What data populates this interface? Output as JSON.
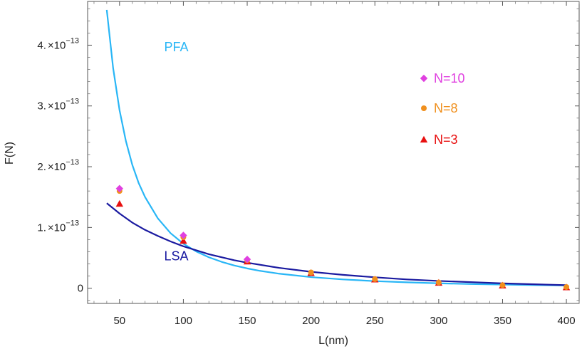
{
  "chart_data": {
    "type": "scatter",
    "xlabel": "L(nm)",
    "ylabel": "F(N)",
    "xlim": [
      25,
      410
    ],
    "ylim": [
      -2.5e-14,
      4.72e-13
    ],
    "x_ticks": [
      {
        "value": 50,
        "label": "50"
      },
      {
        "value": 100,
        "label": "100"
      },
      {
        "value": 150,
        "label": "150"
      },
      {
        "value": 200,
        "label": "200"
      },
      {
        "value": 250,
        "label": "250"
      },
      {
        "value": 300,
        "label": "300"
      },
      {
        "value": 350,
        "label": "350"
      },
      {
        "value": 400,
        "label": "400"
      }
    ],
    "y_ticks": [
      {
        "value": 0,
        "label": "0"
      },
      {
        "value": 1e-13,
        "mantissa": "1.",
        "times": "×",
        "base": "10",
        "exp": "−13"
      },
      {
        "value": 2e-13,
        "mantissa": "2.",
        "times": "×",
        "base": "10",
        "exp": "−13"
      },
      {
        "value": 3e-13,
        "mantissa": "3.",
        "times": "×",
        "base": "10",
        "exp": "−13"
      },
      {
        "value": 4e-13,
        "mantissa": "4.",
        "times": "×",
        "base": "10",
        "exp": "−13"
      }
    ],
    "grid": false,
    "curves": [
      {
        "name": "PFA",
        "color": "#29b6f6",
        "x": [
          40,
          45,
          50,
          55,
          60,
          65,
          70,
          80,
          90,
          100,
          110,
          120,
          130,
          140,
          150,
          160,
          175,
          200,
          225,
          250,
          275,
          300,
          325,
          350,
          375,
          400
        ],
        "y": [
          4.58e-13,
          3.62e-13,
          2.93e-13,
          2.42e-13,
          2.03e-13,
          1.73e-13,
          1.5e-13,
          1.15e-13,
          9.05e-14,
          7.33e-14,
          6.06e-14,
          5.09e-14,
          4.34e-14,
          3.74e-14,
          3.26e-14,
          2.86e-14,
          2.39e-14,
          1.83e-14,
          1.45e-14,
          1.17e-14,
          9.7e-15,
          8.1e-15,
          6.9e-15,
          6e-15,
          5.2e-15,
          4.6e-15
        ]
      },
      {
        "name": "LSA",
        "color": "#1a1aa0",
        "x": [
          40,
          50,
          60,
          70,
          80,
          90,
          100,
          120,
          140,
          150,
          175,
          200,
          225,
          250,
          275,
          300,
          325,
          350,
          375,
          400
        ],
        "y": [
          1.4e-13,
          1.23e-13,
          1.08e-13,
          9.6e-14,
          8.6e-14,
          7.7e-14,
          6.9e-14,
          5.6e-14,
          4.6e-14,
          4.2e-14,
          3.35e-14,
          2.7e-14,
          2.2e-14,
          1.8e-14,
          1.45e-14,
          1.2e-14,
          1e-14,
          8e-15,
          6.5e-15,
          5e-15
        ]
      }
    ],
    "curve_labels": [
      {
        "text": "PFA",
        "color": "#29b6f6",
        "x": 85,
        "y": 3.9e-13
      },
      {
        "text": "LSA",
        "color": "#1a1aa0",
        "x": 85,
        "y": 4.6e-14
      }
    ],
    "series": [
      {
        "name": "N=10",
        "marker": "diamond",
        "color": "#e040e0",
        "x": [
          50,
          100,
          150
        ],
        "y": [
          1.64e-13,
          8.7e-14,
          4.75e-14
        ]
      },
      {
        "name": "N=8",
        "marker": "circle",
        "color": "#f0901e",
        "x": [
          50,
          100,
          150,
          200,
          250,
          300,
          350,
          400
        ],
        "y": [
          1.6e-13,
          8.4e-14,
          4.6e-14,
          2.6e-14,
          1.5e-14,
          9.5e-15,
          5e-15,
          2e-15
        ]
      },
      {
        "name": "N=3",
        "marker": "triangle",
        "color": "#e81010",
        "x": [
          50,
          100,
          150,
          200,
          250,
          300,
          350,
          400
        ],
        "y": [
          1.39e-13,
          7.8e-14,
          4.4e-14,
          2.5e-14,
          1.45e-14,
          9e-15,
          4.5e-15,
          1.5e-15
        ]
      }
    ],
    "legend_placement": "top-right"
  }
}
